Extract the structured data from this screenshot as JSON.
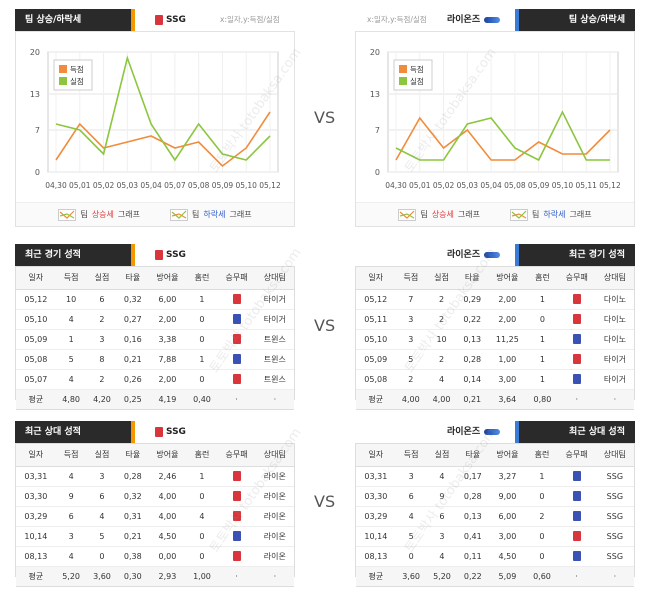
{
  "vs_label": "VS",
  "watermark": "토토박사 totobaksa.com",
  "colors": {
    "header": "#2a2a2a",
    "bar_orange": "#f39800",
    "bar_blue": "#3a7bd5",
    "line_orange": "#f08c3c",
    "line_green": "#8cc63f",
    "win": "#d9353c",
    "loss": "#3a52b4"
  },
  "top_left": {
    "title": "팀 상승/하락세",
    "team": "SSG",
    "axis_note": "x:일자,y:득점/실점",
    "legend_runs": "득점",
    "legend_allowed": "실점",
    "footer_up_prefix": "팀 ",
    "footer_up_word": "상승세",
    "footer_up_suffix": " 그래프",
    "footer_down_prefix": "팀 ",
    "footer_down_word": "하락세",
    "footer_down_suffix": " 그래프"
  },
  "top_right": {
    "title": "팀 상승/하락세",
    "team": "라이온즈",
    "axis_note": "x:일자,y:득점/실점",
    "legend_runs": "득점",
    "legend_allowed": "실점",
    "footer_up_prefix": "팀 ",
    "footer_up_word": "상승세",
    "footer_up_suffix": " 그래프",
    "footer_down_prefix": "팀 ",
    "footer_down_word": "하락세",
    "footer_down_suffix": " 그래프"
  },
  "chart_data": [
    {
      "type": "line",
      "team": "SSG",
      "x": [
        "04,30",
        "05,01",
        "05,02",
        "05,03",
        "05,04",
        "05,07",
        "05,08",
        "05,09",
        "05,10",
        "05,12"
      ],
      "ylim": [
        0,
        20
      ],
      "yticks": [
        "0",
        "7",
        "13",
        "20"
      ],
      "grid": true,
      "legend_position": "top-left",
      "series": [
        {
          "name": "득점",
          "color": "#f08c3c",
          "values": [
            2,
            8,
            4,
            5,
            6,
            4,
            5,
            1,
            4,
            10
          ]
        },
        {
          "name": "실점",
          "color": "#8cc63f",
          "values": [
            8,
            7,
            3,
            19,
            8,
            2,
            8,
            3,
            2,
            6
          ]
        }
      ]
    },
    {
      "type": "line",
      "team": "라이온즈",
      "x": [
        "04,30",
        "05,01",
        "05,02",
        "05,03",
        "05,04",
        "05,08",
        "05,09",
        "05,10",
        "05,11",
        "05,12"
      ],
      "ylim": [
        0,
        20
      ],
      "yticks": [
        "0",
        "7",
        "13",
        "20"
      ],
      "grid": true,
      "legend_position": "top-left",
      "series": [
        {
          "name": "득점",
          "color": "#f08c3c",
          "values": [
            2,
            9,
            4,
            7,
            2,
            2,
            5,
            3,
            3,
            7
          ]
        },
        {
          "name": "실점",
          "color": "#8cc63f",
          "values": [
            4,
            2,
            2,
            8,
            9,
            4,
            2,
            10,
            2,
            2
          ]
        }
      ]
    }
  ],
  "recent_left": {
    "title": "최근 경기 성적",
    "team": "SSG",
    "headers": [
      "일자",
      "득점",
      "실점",
      "타율",
      "방어율",
      "홈런",
      "승무패",
      "상대팀"
    ],
    "rows": [
      [
        "05,12",
        "10",
        "6",
        "0,32",
        "6,00",
        "1",
        "win",
        "타이거"
      ],
      [
        "05,10",
        "4",
        "2",
        "0,27",
        "2,00",
        "0",
        "loss",
        "타이거"
      ],
      [
        "05,09",
        "1",
        "3",
        "0,16",
        "3,38",
        "0",
        "win",
        "트윈스"
      ],
      [
        "05,08",
        "5",
        "8",
        "0,21",
        "7,88",
        "1",
        "loss",
        "트윈스"
      ],
      [
        "05,07",
        "4",
        "2",
        "0,26",
        "2,00",
        "0",
        "win",
        "트윈스"
      ]
    ],
    "avg": [
      "평균",
      "4,80",
      "4,20",
      "0,25",
      "4,19",
      "0,40",
      "·",
      "·"
    ]
  },
  "recent_right": {
    "title": "최근 경기 성적",
    "team": "라이온즈",
    "headers": [
      "일자",
      "득점",
      "실점",
      "타율",
      "방어율",
      "홈런",
      "승무패",
      "상대팀"
    ],
    "rows": [
      [
        "05,12",
        "7",
        "2",
        "0,29",
        "2,00",
        "1",
        "win",
        "다이노"
      ],
      [
        "05,11",
        "3",
        "2",
        "0,22",
        "2,00",
        "0",
        "win",
        "다이노"
      ],
      [
        "05,10",
        "3",
        "10",
        "0,13",
        "11,25",
        "1",
        "loss",
        "다이노"
      ],
      [
        "05,09",
        "5",
        "2",
        "0,28",
        "1,00",
        "1",
        "win",
        "타이거"
      ],
      [
        "05,08",
        "2",
        "4",
        "0,14",
        "3,00",
        "1",
        "loss",
        "타이거"
      ]
    ],
    "avg": [
      "평균",
      "4,00",
      "4,00",
      "0,21",
      "3,64",
      "0,80",
      "·",
      "·"
    ]
  },
  "h2h_left": {
    "title": "최근 상대 성적",
    "team": "SSG",
    "headers": [
      "일자",
      "득점",
      "실점",
      "타율",
      "방어율",
      "홈런",
      "승무패",
      "상대팀"
    ],
    "rows": [
      [
        "03,31",
        "4",
        "3",
        "0,28",
        "2,46",
        "1",
        "win",
        "라이온"
      ],
      [
        "03,30",
        "9",
        "6",
        "0,32",
        "4,00",
        "0",
        "win",
        "라이온"
      ],
      [
        "03,29",
        "6",
        "4",
        "0,31",
        "4,00",
        "4",
        "win",
        "라이온"
      ],
      [
        "10,14",
        "3",
        "5",
        "0,21",
        "4,50",
        "0",
        "loss",
        "라이온"
      ],
      [
        "08,13",
        "4",
        "0",
        "0,38",
        "0,00",
        "0",
        "win",
        "라이온"
      ]
    ],
    "avg": [
      "평균",
      "5,20",
      "3,60",
      "0,30",
      "2,93",
      "1,00",
      "·",
      "·"
    ]
  },
  "h2h_right": {
    "title": "최근 상대 성적",
    "team": "라이온즈",
    "headers": [
      "일자",
      "득점",
      "실점",
      "타율",
      "방어율",
      "홈런",
      "승무패",
      "상대팀"
    ],
    "rows": [
      [
        "03,31",
        "3",
        "4",
        "0,17",
        "3,27",
        "1",
        "loss",
        "SSG"
      ],
      [
        "03,30",
        "6",
        "9",
        "0,28",
        "9,00",
        "0",
        "loss",
        "SSG"
      ],
      [
        "03,29",
        "4",
        "6",
        "0,13",
        "6,00",
        "2",
        "loss",
        "SSG"
      ],
      [
        "10,14",
        "5",
        "3",
        "0,41",
        "3,00",
        "0",
        "win",
        "SSG"
      ],
      [
        "08,13",
        "0",
        "4",
        "0,11",
        "4,50",
        "0",
        "loss",
        "SSG"
      ]
    ],
    "avg": [
      "평균",
      "3,60",
      "5,20",
      "0,22",
      "5,09",
      "0,60",
      "·",
      "·"
    ]
  }
}
